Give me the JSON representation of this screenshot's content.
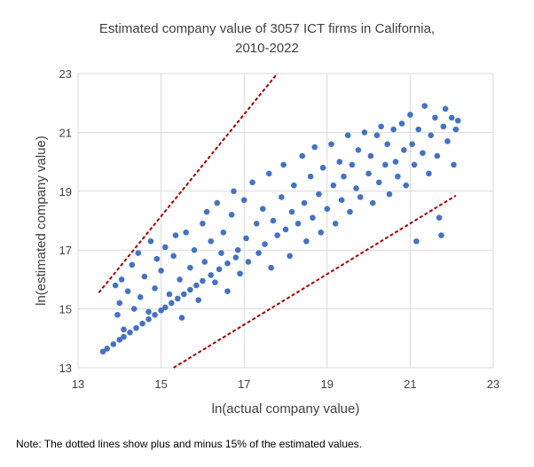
{
  "chart_data": {
    "type": "scatter",
    "title_lines": [
      "Estimated company value of 3057 ICT firms in California,",
      "2010-2022"
    ],
    "xlabel": "ln(actual company value)",
    "ylabel": "ln(estimated company value)",
    "xlim": [
      13,
      23
    ],
    "ylim": [
      13,
      23
    ],
    "xticks": [
      "13",
      "15",
      "17",
      "19",
      "21",
      "23"
    ],
    "yticks": [
      "13",
      "15",
      "17",
      "19",
      "21",
      "23"
    ],
    "grid": true,
    "legend": "none",
    "n_points": 3057,
    "point_color": "#4472C4",
    "series": [
      {
        "kind": "points",
        "note": "representative sample of the dense point cloud",
        "points": [
          [
            13.6,
            13.55
          ],
          [
            13.7,
            13.65
          ],
          [
            13.85,
            13.8
          ],
          [
            14.0,
            13.95
          ],
          [
            14.1,
            14.05
          ],
          [
            14.25,
            14.2
          ],
          [
            14.4,
            14.35
          ],
          [
            14.55,
            14.5
          ],
          [
            14.7,
            14.65
          ],
          [
            14.85,
            14.8
          ],
          [
            15.0,
            14.95
          ],
          [
            15.1,
            15.05
          ],
          [
            15.25,
            15.2
          ],
          [
            15.4,
            15.35
          ],
          [
            15.55,
            15.5
          ],
          [
            15.7,
            15.65
          ],
          [
            15.85,
            15.8
          ],
          [
            16.0,
            15.95
          ],
          [
            16.2,
            16.15
          ],
          [
            16.4,
            16.35
          ],
          [
            16.6,
            16.55
          ],
          [
            16.8,
            16.75
          ],
          [
            13.9,
            15.8
          ],
          [
            13.95,
            14.8
          ],
          [
            14.0,
            15.2
          ],
          [
            14.05,
            16.0
          ],
          [
            14.1,
            14.3
          ],
          [
            14.2,
            15.6
          ],
          [
            14.3,
            16.5
          ],
          [
            14.35,
            15.0
          ],
          [
            14.45,
            16.9
          ],
          [
            14.5,
            15.4
          ],
          [
            14.6,
            16.1
          ],
          [
            14.7,
            14.9
          ],
          [
            14.75,
            17.3
          ],
          [
            14.85,
            15.7
          ],
          [
            14.9,
            16.7
          ],
          [
            15.0,
            16.3
          ],
          [
            15.1,
            17.1
          ],
          [
            15.2,
            15.5
          ],
          [
            15.3,
            16.8
          ],
          [
            15.35,
            17.5
          ],
          [
            15.45,
            16.0
          ],
          [
            15.5,
            14.7
          ],
          [
            15.6,
            17.6
          ],
          [
            15.7,
            16.4
          ],
          [
            15.8,
            17.0
          ],
          [
            15.9,
            15.3
          ],
          [
            16.0,
            17.9
          ],
          [
            16.05,
            16.6
          ],
          [
            16.1,
            18.3
          ],
          [
            16.2,
            17.3
          ],
          [
            16.3,
            15.9
          ],
          [
            16.35,
            18.6
          ],
          [
            16.45,
            16.9
          ],
          [
            16.5,
            17.6
          ],
          [
            16.6,
            15.6
          ],
          [
            16.7,
            18.2
          ],
          [
            16.75,
            19.0
          ],
          [
            16.85,
            17.0
          ],
          [
            16.9,
            16.2
          ],
          [
            17.0,
            18.7
          ],
          [
            17.05,
            17.4
          ],
          [
            17.1,
            16.6
          ],
          [
            17.2,
            19.3
          ],
          [
            17.3,
            17.9
          ],
          [
            17.35,
            16.9
          ],
          [
            17.45,
            18.4
          ],
          [
            17.5,
            17.2
          ],
          [
            17.6,
            19.6
          ],
          [
            17.65,
            16.4
          ],
          [
            17.7,
            18.0
          ],
          [
            17.8,
            17.5
          ],
          [
            17.9,
            18.8
          ],
          [
            17.95,
            19.9
          ],
          [
            18.0,
            17.7
          ],
          [
            18.1,
            16.8
          ],
          [
            18.15,
            18.3
          ],
          [
            18.2,
            19.2
          ],
          [
            18.3,
            17.9
          ],
          [
            18.4,
            20.2
          ],
          [
            18.45,
            18.6
          ],
          [
            18.5,
            17.3
          ],
          [
            18.6,
            19.5
          ],
          [
            18.65,
            18.1
          ],
          [
            18.7,
            20.5
          ],
          [
            18.8,
            18.9
          ],
          [
            18.85,
            17.6
          ],
          [
            18.9,
            19.8
          ],
          [
            19.0,
            18.4
          ],
          [
            19.1,
            20.6
          ],
          [
            19.15,
            19.2
          ],
          [
            19.2,
            17.9
          ],
          [
            19.3,
            20.0
          ],
          [
            19.35,
            18.7
          ],
          [
            19.4,
            19.5
          ],
          [
            19.5,
            20.9
          ],
          [
            19.55,
            18.3
          ],
          [
            19.6,
            19.9
          ],
          [
            19.7,
            19.1
          ],
          [
            19.75,
            20.4
          ],
          [
            19.8,
            18.8
          ],
          [
            19.9,
            21.0
          ],
          [
            20.0,
            19.6
          ],
          [
            20.05,
            20.2
          ],
          [
            20.1,
            18.6
          ],
          [
            20.2,
            20.9
          ],
          [
            20.25,
            19.3
          ],
          [
            20.3,
            21.2
          ],
          [
            20.4,
            19.9
          ],
          [
            20.45,
            20.6
          ],
          [
            20.5,
            18.9
          ],
          [
            20.6,
            21.1
          ],
          [
            20.65,
            20.0
          ],
          [
            20.7,
            19.5
          ],
          [
            20.8,
            21.3
          ],
          [
            20.85,
            20.4
          ],
          [
            20.9,
            19.2
          ],
          [
            21.0,
            21.6
          ],
          [
            21.05,
            20.6
          ],
          [
            21.1,
            19.9
          ],
          [
            21.15,
            17.3
          ],
          [
            21.2,
            21.1
          ],
          [
            21.3,
            20.3
          ],
          [
            21.35,
            21.9
          ],
          [
            21.45,
            19.6
          ],
          [
            21.5,
            20.9
          ],
          [
            21.6,
            21.5
          ],
          [
            21.65,
            20.2
          ],
          [
            21.7,
            18.1
          ],
          [
            21.75,
            17.5
          ],
          [
            21.8,
            21.2
          ],
          [
            21.85,
            21.8
          ],
          [
            21.9,
            20.7
          ],
          [
            22.0,
            21.5
          ],
          [
            22.05,
            19.9
          ],
          [
            22.1,
            21.1
          ],
          [
            22.15,
            21.4
          ]
        ]
      },
      {
        "kind": "line",
        "style": "dotted",
        "color": "#A00000",
        "points": [
          [
            13.5,
            15.55
          ],
          [
            17.8,
            23.0
          ]
        ]
      },
      {
        "kind": "line",
        "style": "dotted",
        "color": "#A00000",
        "points": [
          [
            15.3,
            13.0
          ],
          [
            22.1,
            18.85
          ]
        ]
      }
    ]
  },
  "note": "Note: The dotted lines show plus and minus 15% of the estimated values."
}
